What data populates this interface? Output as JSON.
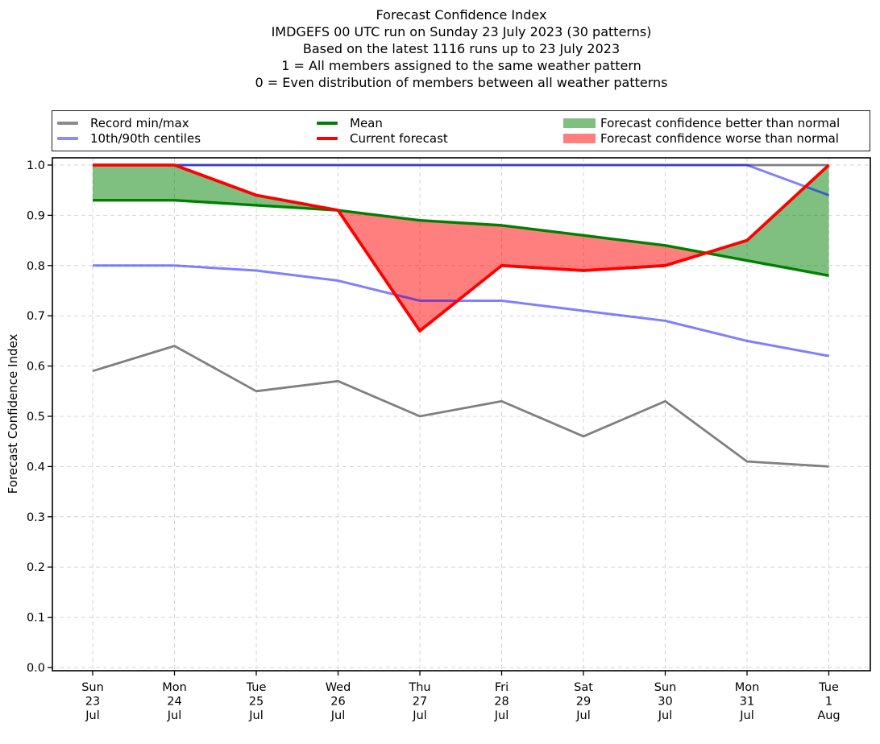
{
  "title": {
    "lines": [
      "Forecast Confidence Index",
      "IMDGEFS 00 UTC run on Sunday 23 July 2023 (30 patterns)",
      "Based on the latest 1116 runs up to 23 July 2023",
      "1 = All members assigned to the same weather pattern",
      "0 = Even distribution of members between all weather patterns"
    ]
  },
  "legend": {
    "items": [
      {
        "label": "Record min/max",
        "swatch": "line",
        "color": "#8a8a8a"
      },
      {
        "label": "10th/90th centiles",
        "swatch": "line",
        "color": "#8c8cf0"
      },
      {
        "label": "Mean",
        "swatch": "line",
        "color": "#008000"
      },
      {
        "label": "Current forecast",
        "swatch": "line",
        "color": "#ff0000"
      },
      {
        "label": "Forecast confidence better than normal",
        "swatch": "patch",
        "color": "#7fbf7f"
      },
      {
        "label": "Forecast confidence worse than normal",
        "swatch": "patch",
        "color": "#ff7f7f"
      }
    ]
  },
  "chart_data": {
    "type": "line",
    "title": "Forecast Confidence Index",
    "ylabel": "Forecast Confidence Index",
    "ylim": [
      0.0,
      1.02
    ],
    "grid": true,
    "grid_color": "#d4d4d4",
    "legend_position": "top",
    "yticks": [
      "0.0",
      "0.1",
      "0.2",
      "0.3",
      "0.4",
      "0.5",
      "0.6",
      "0.7",
      "0.8",
      "0.9",
      "1.0"
    ],
    "categories": [
      [
        "Sun",
        "23",
        "Jul"
      ],
      [
        "Mon",
        "24",
        "Jul"
      ],
      [
        "Tue",
        "25",
        "Jul"
      ],
      [
        "Wed",
        "26",
        "Jul"
      ],
      [
        "Thu",
        "27",
        "Jul"
      ],
      [
        "Fri",
        "28",
        "Jul"
      ],
      [
        "Sat",
        "29",
        "Jul"
      ],
      [
        "Sun",
        "30",
        "Jul"
      ],
      [
        "Mon",
        "31",
        "Jul"
      ],
      [
        "Tue",
        "1",
        "Aug"
      ]
    ],
    "series": [
      {
        "key": "record_max",
        "name": "Record max",
        "color": "#808080",
        "opacity": 1,
        "width": 2.8,
        "values": [
          1.0,
          1.0,
          1.0,
          1.0,
          1.0,
          1.0,
          1.0,
          1.0,
          1.0,
          1.0
        ]
      },
      {
        "key": "record_min",
        "name": "Record min",
        "color": "#808080",
        "opacity": 1,
        "width": 2.8,
        "values": [
          0.59,
          0.64,
          0.55,
          0.57,
          0.5,
          0.53,
          0.46,
          0.53,
          0.41,
          0.4
        ]
      },
      {
        "key": "p90",
        "name": "90th centile",
        "color": "#0000ff",
        "opacity": 0.5,
        "width": 3,
        "values": [
          1.0,
          1.0,
          1.0,
          1.0,
          1.0,
          1.0,
          1.0,
          1.0,
          1.0,
          0.94
        ]
      },
      {
        "key": "p10",
        "name": "10th centile",
        "color": "#0000ff",
        "opacity": 0.5,
        "width": 3,
        "values": [
          0.8,
          0.8,
          0.79,
          0.77,
          0.73,
          0.73,
          0.71,
          0.69,
          0.65,
          0.62
        ]
      },
      {
        "key": "mean",
        "name": "Mean",
        "color": "#008000",
        "opacity": 1,
        "width": 3.4,
        "values": [
          0.93,
          0.93,
          0.92,
          0.91,
          0.89,
          0.88,
          0.86,
          0.84,
          0.81,
          0.78
        ]
      },
      {
        "key": "forecast",
        "name": "Current forecast",
        "color": "#ff0000",
        "opacity": 1,
        "width": 3.8,
        "values": [
          1.0,
          1.0,
          0.94,
          0.91,
          0.67,
          0.8,
          0.79,
          0.8,
          0.85,
          1.0
        ]
      }
    ],
    "fills": {
      "between": [
        "mean",
        "forecast"
      ],
      "better_color": "#008000",
      "worse_color": "#ff0000",
      "opacity": 0.5,
      "better_label": "Forecast confidence better than normal",
      "worse_label": "Forecast confidence worse than normal"
    }
  }
}
